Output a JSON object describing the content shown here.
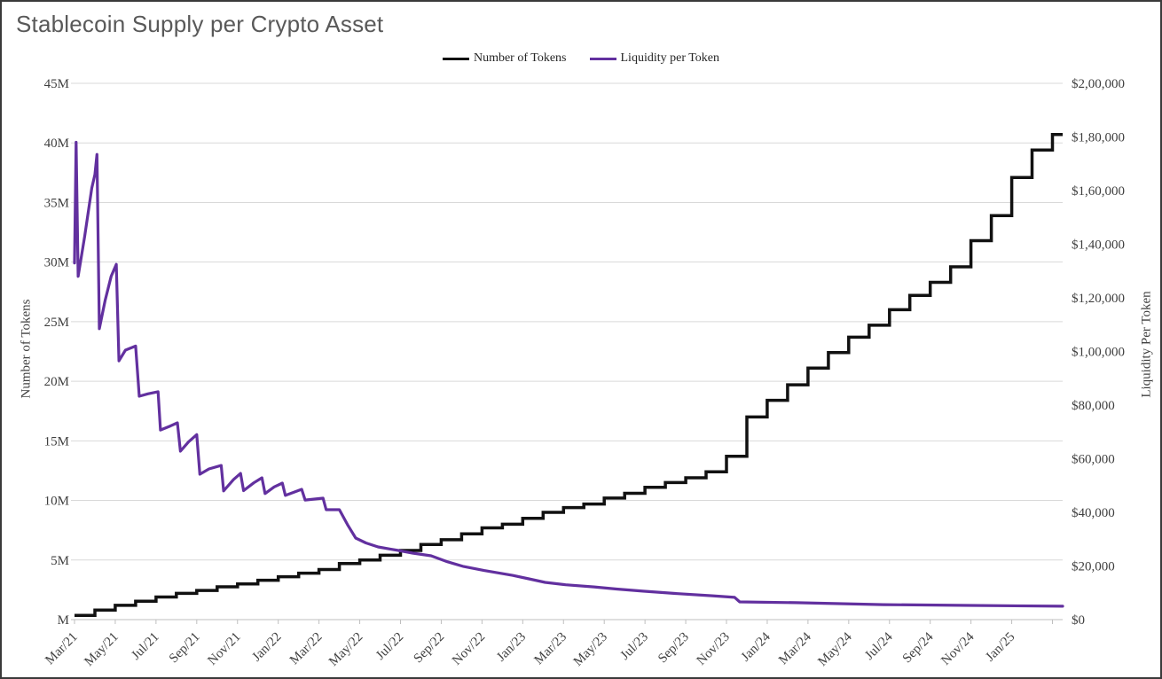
{
  "title": "Stablecoin Supply per Crypto Asset",
  "legend": [
    {
      "label": "Number of Tokens",
      "color": "#111111"
    },
    {
      "label": "Liquidity per Token",
      "color": "#62309f"
    }
  ],
  "left_axis": {
    "title": "Number of Tokens",
    "ticks": [
      "45M",
      "40M",
      "35M",
      "30M",
      "25M",
      "20M",
      "15M",
      "10M",
      "5M",
      "M"
    ]
  },
  "right_axis": {
    "title": "Liquidity Per Token",
    "ticks": [
      "$2,00,000",
      "$1,80,000",
      "$1,60,000",
      "$1,40,000",
      "$1,20,000",
      "$1,00,000",
      "$80,000",
      "$60,000",
      "$40,000",
      "$20,000",
      "$0"
    ]
  },
  "x_axis": {
    "tick_labels": [
      "Mar/21",
      "May/21",
      "Jul/21",
      "Sep/21",
      "Nov/21",
      "Jan/22",
      "Mar/22",
      "May/22",
      "Jul/22",
      "Sep/22",
      "Nov/22",
      "Jan/23",
      "Mar/23",
      "May/23",
      "Jul/23",
      "Sep/23",
      "Nov/23",
      "Jan/24",
      "Mar/24",
      "May/24",
      "Jul/24",
      "Sep/24",
      "Nov/24",
      "Jan/25"
    ]
  },
  "colors": {
    "tokens_line": "#111111",
    "liquidity_line": "#62309f",
    "grid": "#d9d9d9",
    "axis": "#bfbfbf",
    "tick_text": "#3f3f3f",
    "title_text": "#595959"
  },
  "chart_data": {
    "type": "line",
    "title": "Stablecoin Supply per Crypto Asset",
    "grid": true,
    "legend_position": "top-center",
    "left_axis": {
      "label": "Number of Tokens",
      "min": 0,
      "max": 45000000,
      "tick_step": 5000000,
      "unit": "millions of tokens"
    },
    "right_axis": {
      "label": "Liquidity Per Token",
      "min": 0,
      "max": 200000,
      "tick_step": 20000,
      "unit": "USD"
    },
    "months": [
      "Mar/21",
      "Apr/21",
      "May/21",
      "Jun/21",
      "Jul/21",
      "Aug/21",
      "Sep/21",
      "Oct/21",
      "Nov/21",
      "Dec/21",
      "Jan/22",
      "Feb/22",
      "Mar/22",
      "Apr/22",
      "May/22",
      "Jun/22",
      "Jul/22",
      "Aug/22",
      "Sep/22",
      "Oct/22",
      "Nov/22",
      "Dec/22",
      "Jan/23",
      "Feb/23",
      "Mar/23",
      "Apr/23",
      "May/23",
      "Jun/23",
      "Jul/23",
      "Aug/23",
      "Sep/23",
      "Oct/23",
      "Nov/23",
      "Dec/23",
      "Jan/24",
      "Feb/24",
      "Mar/24",
      "Apr/24",
      "May/24",
      "Jun/24",
      "Jul/24",
      "Aug/24",
      "Sep/24",
      "Oct/24",
      "Nov/24",
      "Dec/24",
      "Jan/25",
      "Feb/25",
      "Mar/25"
    ],
    "series": [
      {
        "name": "Number of Tokens",
        "axis": "left",
        "style": "step",
        "color": "#111111",
        "unit": "millions",
        "values": [
          0.35,
          0.8,
          1.2,
          1.55,
          1.9,
          2.2,
          2.45,
          2.75,
          3.0,
          3.3,
          3.6,
          3.9,
          4.2,
          4.7,
          5.0,
          5.4,
          5.8,
          6.3,
          6.7,
          7.2,
          7.7,
          8.0,
          8.5,
          9.0,
          9.4,
          9.7,
          10.2,
          10.6,
          11.1,
          11.5,
          11.9,
          12.4,
          13.7,
          17.0,
          18.4,
          19.7,
          21.1,
          22.4,
          23.7,
          24.7,
          26.0,
          27.2,
          28.3,
          29.6,
          31.8,
          33.9,
          37.1,
          39.4,
          40.7
        ]
      },
      {
        "name": "Liquidity per Token",
        "axis": "right",
        "style": "line",
        "color": "#62309f",
        "unit": "USD",
        "points": [
          [
            0,
            133000
          ],
          [
            0.08,
            178000
          ],
          [
            0.18,
            128000
          ],
          [
            0.5,
            143000
          ],
          [
            0.85,
            161000
          ],
          [
            1.0,
            166000
          ],
          [
            1.1,
            173500
          ],
          [
            1.22,
            108500
          ],
          [
            1.5,
            119000
          ],
          [
            1.8,
            128000
          ],
          [
            2.05,
            132500
          ],
          [
            2.18,
            96500
          ],
          [
            2.5,
            100500
          ],
          [
            3.0,
            102000
          ],
          [
            3.18,
            83300
          ],
          [
            3.6,
            84200
          ],
          [
            4.1,
            85000
          ],
          [
            4.22,
            70700
          ],
          [
            4.7,
            72200
          ],
          [
            5.05,
            73400
          ],
          [
            5.2,
            62800
          ],
          [
            5.6,
            66300
          ],
          [
            6.0,
            69000
          ],
          [
            6.15,
            54200
          ],
          [
            6.6,
            56200
          ],
          [
            7.2,
            57500
          ],
          [
            7.32,
            48000
          ],
          [
            7.8,
            52200
          ],
          [
            8.15,
            54500
          ],
          [
            8.3,
            48100
          ],
          [
            8.8,
            51000
          ],
          [
            9.2,
            52900
          ],
          [
            9.35,
            47000
          ],
          [
            9.8,
            49500
          ],
          [
            10.2,
            50900
          ],
          [
            10.35,
            46300
          ],
          [
            10.8,
            47600
          ],
          [
            11.15,
            48600
          ],
          [
            11.32,
            44600
          ],
          [
            12.2,
            45300
          ],
          [
            12.35,
            41000
          ],
          [
            13.0,
            41000
          ],
          [
            13.4,
            35400
          ],
          [
            13.8,
            30400
          ],
          [
            14.3,
            28600
          ],
          [
            14.9,
            27100
          ],
          [
            15.5,
            26300
          ],
          [
            15.9,
            25800
          ],
          [
            16.6,
            24800
          ],
          [
            17.5,
            23800
          ],
          [
            18.3,
            21600
          ],
          [
            19.1,
            19800
          ],
          [
            20.1,
            18300
          ],
          [
            21.5,
            16500
          ],
          [
            22.3,
            15200
          ],
          [
            23.1,
            13900
          ],
          [
            24.1,
            13000
          ],
          [
            25.5,
            12200
          ],
          [
            26.6,
            11400
          ],
          [
            27.9,
            10600
          ],
          [
            29.6,
            9700
          ],
          [
            31.3,
            8900
          ],
          [
            32.4,
            8300
          ],
          [
            32.65,
            6600
          ],
          [
            35.4,
            6300
          ],
          [
            39.7,
            5600
          ],
          [
            44.0,
            5300
          ],
          [
            48.5,
            5000
          ]
        ]
      }
    ]
  }
}
